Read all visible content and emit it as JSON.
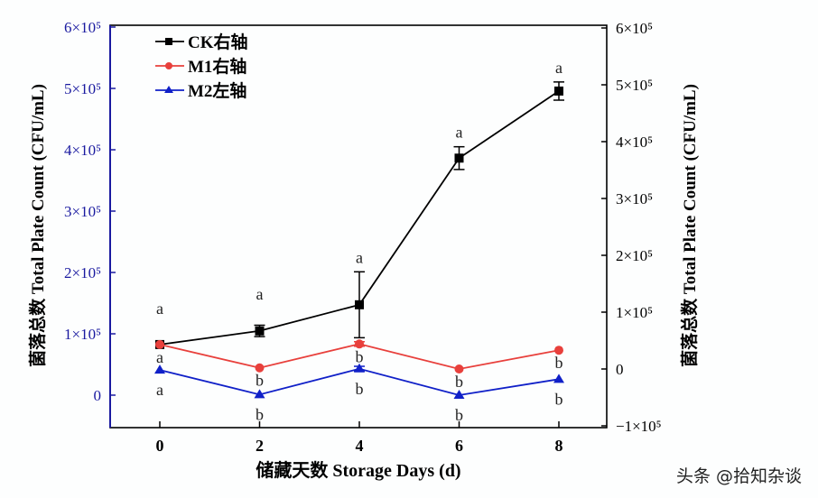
{
  "chart_data": {
    "type": "line",
    "xlabel": "储藏天数 Storage Days (d)",
    "ylabel_left": "菌落总数 Total Plate Count (CFU/mL)",
    "ylabel_right": "菌落总数 Total Plate Count (CFU/mL)",
    "x": [
      0,
      2,
      4,
      6,
      8
    ],
    "x_ticks": [
      "0",
      "2",
      "4",
      "6",
      "8"
    ],
    "ylim_left": [
      -50000,
      600000
    ],
    "ylim_right": [
      -100000,
      600000
    ],
    "yticks_left": [
      {
        "v": 0,
        "t": "0"
      },
      {
        "v": 100000,
        "t": "1×10⁵"
      },
      {
        "v": 200000,
        "t": "2×10⁵"
      },
      {
        "v": 300000,
        "t": "3×10⁵"
      },
      {
        "v": 400000,
        "t": "4×10⁵"
      },
      {
        "v": 500000,
        "t": "5×10⁵"
      },
      {
        "v": 600000,
        "t": "6×10⁵"
      }
    ],
    "yticks_right": [
      {
        "v": -100000,
        "t": "−1×10⁵"
      },
      {
        "v": 0,
        "t": "0"
      },
      {
        "v": 100000,
        "t": "1×10⁵"
      },
      {
        "v": 200000,
        "t": "2×10⁵"
      },
      {
        "v": 300000,
        "t": "3×10⁵"
      },
      {
        "v": 400000,
        "t": "4×10⁵"
      },
      {
        "v": 500000,
        "t": "5×10⁵"
      },
      {
        "v": 600000,
        "t": "6×10⁵"
      }
    ],
    "left_axis_color": "#1a1aa0",
    "grid": false,
    "legend_position": "top-left",
    "series": [
      {
        "name": "CK右轴",
        "axis": "right",
        "color": "#000000",
        "marker": "square",
        "values": [
          43000,
          67000,
          113000,
          371000,
          489000
        ],
        "errors": [
          0,
          10000,
          58000,
          20000,
          16000
        ],
        "letters": [
          "a",
          "a",
          "a",
          "a",
          "a"
        ]
      },
      {
        "name": "M1右轴",
        "axis": "right",
        "color": "#e8403c",
        "marker": "circle",
        "values": [
          43000,
          2000,
          44000,
          0,
          33000
        ],
        "errors": [
          0,
          0,
          4000,
          0,
          0
        ],
        "letters": [
          "a",
          "b",
          "b",
          "b",
          "b"
        ]
      },
      {
        "name": "M2左轴",
        "axis": "left",
        "color": "#1020c8",
        "marker": "triangle",
        "values": [
          41000,
          1000,
          43000,
          0,
          26000
        ],
        "errors": [
          0,
          0,
          4000,
          0,
          0
        ],
        "letters": [
          "a",
          "b",
          "b",
          "b",
          "b"
        ]
      }
    ]
  },
  "watermark": "头条 @拾知杂谈"
}
